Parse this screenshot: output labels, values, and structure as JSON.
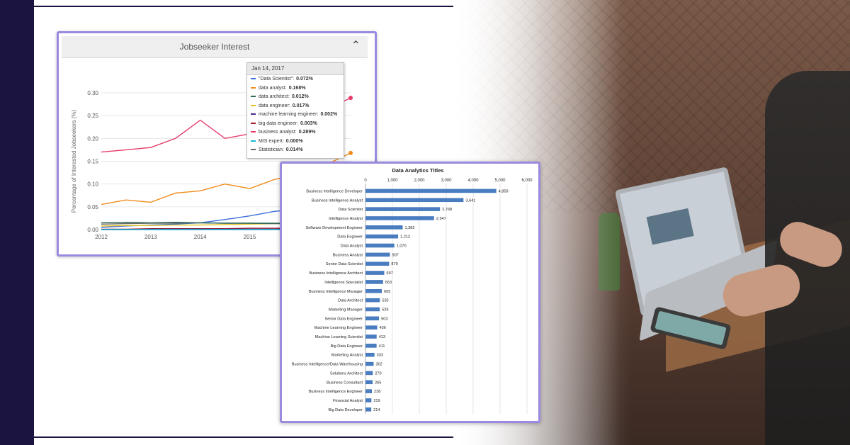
{
  "panel1": {
    "title": "Jobseeker Interest",
    "tooltip": {
      "date": "Jan 14, 2017",
      "rows": [
        {
          "label": "\"Data Scientist\":",
          "value": "0.072%",
          "color": "#3a6fd8"
        },
        {
          "label": "data analyst:",
          "value": "0.168%",
          "color": "#f08c1e"
        },
        {
          "label": "data architect:",
          "value": "0.012%",
          "color": "#2e6b57"
        },
        {
          "label": "data engineer:",
          "value": "0.017%",
          "color": "#e8c21a"
        },
        {
          "label": "machine learning engineer:",
          "value": "0.002%",
          "color": "#4b2a8a"
        },
        {
          "label": "big data engineer:",
          "value": "0.003%",
          "color": "#a11f2c"
        },
        {
          "label": "business analyst:",
          "value": "0.289%",
          "color": "#e83a6a"
        },
        {
          "label": "MIS expert:",
          "value": "0.000%",
          "color": "#19b6d2"
        },
        {
          "label": "Statistician:",
          "value": "0.014%",
          "color": "#666666"
        }
      ]
    }
  },
  "chart_data": [
    {
      "type": "line",
      "title": "Jobseeker Interest",
      "ylabel": "Percentage of Interested Jobseekers (%)",
      "xlabel": "",
      "ylim": [
        0,
        0.3
      ],
      "yticks": [
        "0.00",
        "0.05",
        "0.10",
        "0.15",
        "0.20",
        "0.25",
        "0.30"
      ],
      "xticks": [
        "2012",
        "2013",
        "2014",
        "2015"
      ],
      "x": [
        2012.0,
        2012.5,
        2013.0,
        2013.5,
        2014.0,
        2014.5,
        2015.0,
        2015.5,
        2016.0,
        2016.5,
        2017.04
      ],
      "series": [
        {
          "name": "business analyst",
          "color": "#e83a6a",
          "values": [
            0.17,
            0.175,
            0.18,
            0.2,
            0.24,
            0.2,
            0.21,
            0.22,
            0.25,
            0.26,
            0.289
          ]
        },
        {
          "name": "data analyst",
          "color": "#f08c1e",
          "values": [
            0.055,
            0.065,
            0.06,
            0.08,
            0.085,
            0.1,
            0.09,
            0.11,
            0.12,
            0.14,
            0.168
          ]
        },
        {
          "name": "\"Data Scientist\"",
          "color": "#3a6fd8",
          "values": [
            0.005,
            0.008,
            0.01,
            0.012,
            0.015,
            0.022,
            0.03,
            0.04,
            0.045,
            0.06,
            0.072
          ]
        },
        {
          "name": "data engineer",
          "color": "#e8c21a",
          "values": [
            0.008,
            0.009,
            0.009,
            0.01,
            0.01,
            0.011,
            0.012,
            0.013,
            0.014,
            0.015,
            0.017
          ]
        },
        {
          "name": "Statistician",
          "color": "#666666",
          "values": [
            0.012,
            0.013,
            0.014,
            0.014,
            0.015,
            0.014,
            0.014,
            0.014,
            0.014,
            0.014,
            0.014
          ]
        },
        {
          "name": "data architect",
          "color": "#2e6b57",
          "values": [
            0.015,
            0.016,
            0.015,
            0.016,
            0.015,
            0.014,
            0.014,
            0.013,
            0.013,
            0.012,
            0.012
          ]
        },
        {
          "name": "big data engineer",
          "color": "#a11f2c",
          "values": [
            0.001,
            0.001,
            0.002,
            0.002,
            0.002,
            0.002,
            0.003,
            0.003,
            0.003,
            0.003,
            0.003
          ]
        },
        {
          "name": "machine learning engineer",
          "color": "#4b2a8a",
          "values": [
            0.0,
            0.0,
            0.001,
            0.001,
            0.001,
            0.001,
            0.001,
            0.001,
            0.002,
            0.002,
            0.002
          ]
        },
        {
          "name": "MIS expert",
          "color": "#19b6d2",
          "values": [
            0.0,
            0.0,
            0.0,
            0.0,
            0.0,
            0.0,
            0.0,
            0.0,
            0.0,
            0.0,
            0.0
          ]
        }
      ]
    },
    {
      "type": "bar",
      "orientation": "horizontal",
      "title": "Data Analytics Titles",
      "xlim": [
        0,
        6000
      ],
      "xticks": [
        "0",
        "1,000",
        "2,000",
        "3,000",
        "4,000",
        "5,000",
        "6,000"
      ],
      "bar_color": "#4a7cc0",
      "categories": [
        "Business Intelligence Developer",
        "Business Intelligence Analyst",
        "Data Scientist",
        "Intelligence Analyst",
        "Software Development Engineer",
        "Data Engineer",
        "Data Analyst",
        "Business Analyst",
        "Senior Data Scientist",
        "Business Intelligence Architect",
        "Intelligence Specialist",
        "Business Intelligence Manager",
        "Data Architect",
        "Marketing Manager",
        "Senior Data Engineer",
        "Machine Learning Engineer",
        "Machine Learning Scientist",
        "Big Data Engineer",
        "Marketing Analyst",
        "Business Intelligence/Data Warehousing",
        "Solutions Architect",
        "Business Consultant",
        "Business Intelligence Engineer",
        "Financial Analyst",
        "Big Data Developer"
      ],
      "values": [
        4859,
        3641,
        2768,
        2547,
        1382,
        1212,
        1070,
        907,
        879,
        697,
        653,
        605,
        535,
        529,
        503,
        436,
        413,
        411,
        333,
        302,
        270,
        265,
        238,
        219,
        214
      ],
      "value_labels": [
        "4,859",
        "3,641",
        "2,768",
        "2,547",
        "1,382",
        "1,212",
        "1,070",
        "907",
        "879",
        "697",
        "653",
        "605",
        "535",
        "529",
        "503",
        "436",
        "413",
        "411",
        "333",
        "302",
        "270",
        "265",
        "238",
        "219",
        "214"
      ]
    }
  ]
}
